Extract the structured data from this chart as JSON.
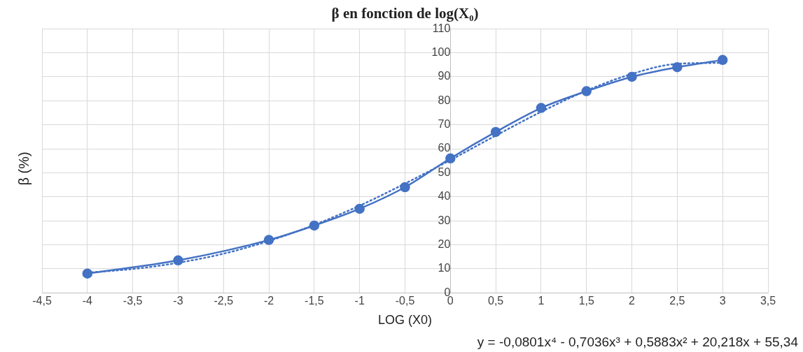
{
  "chart_data": {
    "type": "line",
    "title": "β en fonction de log(X₀)",
    "xlabel": "LOG (X0)",
    "ylabel": "β (%)",
    "x": [
      -4,
      -3,
      -2,
      -1.5,
      -1,
      -0.5,
      0,
      0.5,
      1,
      1.5,
      2,
      2.5,
      3
    ],
    "series": [
      {
        "color": "#4472c4",
        "values": [
          8,
          13.5,
          22,
          28,
          35,
          44,
          56,
          67,
          77,
          84,
          90,
          94,
          97
        ],
        "marker": "circle",
        "line_style": "solid"
      },
      {
        "type": "line",
        "color": "#4472c4",
        "x": [
          -4,
          -3.5,
          -3,
          -2.5,
          -2,
          -1.5,
          -1,
          -0.5,
          0,
          0.5,
          1,
          1.5,
          2,
          2.5,
          3
        ],
        "values": [
          8.4,
          9.9,
          12.5,
          16.3,
          21.6,
          28.3,
          36.3,
          45.5,
          55.3,
          65.5,
          75.4,
          84.2,
          91.2,
          95.4,
          95.8
        ],
        "marker": "none",
        "line_style": "dotted"
      }
    ],
    "xlim": [
      -4.5,
      3.5
    ],
    "xticks": [
      {
        "value": -4.5,
        "label": "-4,5"
      },
      -4,
      {
        "value": -3.5,
        "label": "-3,5"
      },
      -3,
      {
        "value": -2.5,
        "label": "-2,5"
      },
      -2,
      {
        "value": -1.5,
        "label": "-1,5"
      },
      -1,
      {
        "value": -0.5,
        "label": "-0,5"
      },
      0,
      {
        "value": 0.5,
        "label": "0,5"
      },
      1,
      {
        "value": 1.5,
        "label": "1,5"
      },
      2,
      {
        "value": 2.5,
        "label": "2,5"
      },
      3,
      {
        "value": 3.5,
        "label": "3,5"
      }
    ],
    "ylim": [
      0,
      110
    ],
    "yticks": [
      0,
      10,
      20,
      30,
      40,
      50,
      60,
      70,
      80,
      90,
      100,
      110
    ],
    "grid": true,
    "legend": false,
    "annotations": [
      "y = -0,0801x⁴ - 0,7036x³ + 0,5883x² + 20,218x + 55,34"
    ]
  }
}
